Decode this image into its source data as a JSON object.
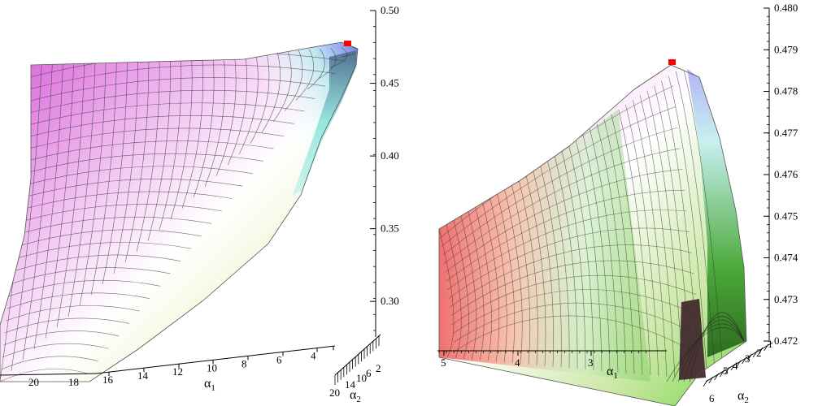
{
  "chart_data": [
    {
      "type": "surface3d",
      "title": "",
      "zlim": [
        0.28,
        0.5
      ],
      "z_ticks": [
        "0.50",
        "0.45",
        "0.40",
        "0.35",
        "0.30"
      ],
      "x_axis": {
        "label": "α",
        "sub": "1",
        "ticks": [
          "20",
          "18",
          "16",
          "14",
          "12",
          "10",
          "8",
          "6",
          "4",
          "2"
        ]
      },
      "y_axis": {
        "label": "α",
        "sub": "2",
        "ticks": [
          "20",
          "14",
          "10",
          "6",
          "2"
        ]
      },
      "maximum": {
        "alpha1": 1.5,
        "alpha2": 2.5,
        "value": 0.479,
        "marker_color": "#ff0000"
      },
      "surface_colors": [
        "#d450d4",
        "#ffffff",
        "#9fe9e9",
        "#e8e890"
      ]
    },
    {
      "type": "surface3d",
      "title": "",
      "zlim": [
        0.472,
        0.48
      ],
      "z_ticks": [
        "0.480",
        "0.479",
        "0.478",
        "0.477",
        "0.476",
        "0.475",
        "0.474",
        "0.473",
        "0.472"
      ],
      "x_axis": {
        "label": "α",
        "sub": "1",
        "ticks": [
          "5",
          "4",
          "3"
        ]
      },
      "y_axis": {
        "label": "α",
        "sub": "2",
        "ticks": [
          "1",
          "2",
          "3",
          "4",
          "5",
          "6"
        ]
      },
      "maximum": {
        "alpha1": 2.4,
        "alpha2": 2.6,
        "value": 0.4787,
        "marker_color": "#ff0000"
      },
      "surface_colors": [
        "#f06a6a",
        "#f0a0f0",
        "#a0f0f0",
        "#60d040"
      ]
    }
  ]
}
